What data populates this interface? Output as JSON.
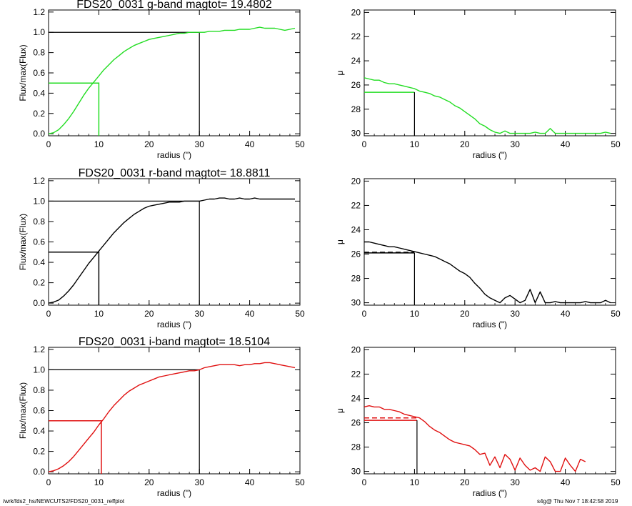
{
  "footer": {
    "path": "/wrk/fds2_hs/NEWCUTS2/FDS20_0031_reffplot",
    "stamp": "s4g@  Thu Nov  7 18:42:58 2019"
  },
  "chart_data": [
    {
      "type": "line",
      "title": "FDS20_0031 g-band  magtot=      19.4802",
      "xlabel": "radius (\")",
      "ylabel": "Flux/max(Flux)",
      "xlim": [
        0,
        50
      ],
      "ylim": [
        -0.02,
        1.22
      ],
      "xticks": [
        "0",
        "10",
        "20",
        "30",
        "40",
        "50"
      ],
      "yticks": [
        "0.0",
        "0.2",
        "0.4",
        "0.6",
        "0.8",
        "1.0",
        "1.2"
      ],
      "color": "#22dd22",
      "series": [
        {
          "x": [
            0,
            1,
            2,
            3,
            4,
            5,
            6,
            7,
            8,
            9,
            10,
            11,
            12,
            13,
            14,
            15,
            16,
            17,
            18,
            19,
            20,
            21,
            22,
            23,
            24,
            25,
            26,
            27,
            28,
            29,
            30,
            31,
            32,
            33,
            34,
            35,
            36,
            37,
            38,
            39,
            40,
            41,
            42,
            43,
            44,
            45,
            46,
            47,
            48,
            49
          ],
          "y": [
            0.0,
            0.01,
            0.04,
            0.09,
            0.15,
            0.22,
            0.3,
            0.38,
            0.45,
            0.51,
            0.57,
            0.63,
            0.68,
            0.73,
            0.77,
            0.81,
            0.84,
            0.87,
            0.89,
            0.91,
            0.93,
            0.94,
            0.95,
            0.96,
            0.97,
            0.98,
            0.99,
            0.99,
            1.0,
            1.0,
            1.0,
            1.0,
            1.01,
            1.01,
            1.01,
            1.02,
            1.02,
            1.02,
            1.03,
            1.03,
            1.03,
            1.04,
            1.05,
            1.04,
            1.04,
            1.04,
            1.03,
            1.02,
            1.03,
            1.04
          ]
        }
      ],
      "reference_lines": {
        "half_light": {
          "x": 10,
          "y": 0.5
        },
        "total": {
          "x": 30,
          "y": 1.0
        }
      }
    },
    {
      "type": "line",
      "title": "",
      "xlabel": "radius (\")",
      "ylabel": "μ",
      "xlim": [
        0,
        50
      ],
      "ylim": [
        30.2,
        19.8
      ],
      "xticks": [
        "0",
        "10",
        "20",
        "30",
        "40",
        "50"
      ],
      "yticks": [
        "20",
        "22",
        "24",
        "26",
        "28",
        "30"
      ],
      "color": "#22dd22",
      "series": [
        {
          "x": [
            0,
            1,
            2,
            3,
            4,
            5,
            6,
            7,
            8,
            9,
            10,
            11,
            12,
            13,
            14,
            15,
            16,
            17,
            18,
            19,
            20,
            21,
            22,
            23,
            24,
            25,
            26,
            27,
            28,
            29,
            30,
            31,
            32,
            33,
            34,
            35,
            36,
            37,
            38,
            39,
            40,
            41,
            42,
            43,
            44,
            45,
            46,
            47,
            48,
            49
          ],
          "y": [
            25.4,
            25.5,
            25.6,
            25.6,
            25.8,
            25.9,
            25.9,
            26.0,
            26.1,
            26.2,
            26.3,
            26.5,
            26.6,
            26.7,
            26.9,
            27.0,
            27.2,
            27.4,
            27.7,
            27.9,
            28.2,
            28.5,
            28.8,
            29.2,
            29.4,
            29.7,
            29.9,
            30.0,
            29.8,
            30.0,
            30.0,
            30.0,
            30.0,
            30.0,
            29.9,
            30.0,
            30.0,
            29.6,
            30.0,
            30.0,
            30.0,
            30.0,
            30.0,
            30.0,
            30.0,
            30.0,
            30.0,
            30.0,
            29.9,
            30.0
          ]
        }
      ],
      "reference_lines": {
        "mu_half": {
          "x": 10,
          "y": 26.6
        }
      }
    },
    {
      "type": "line",
      "title": "FDS20_0031 r-band  magtot=      18.8811",
      "xlabel": "radius (\")",
      "ylabel": "Flux/max(Flux)",
      "xlim": [
        0,
        50
      ],
      "ylim": [
        -0.02,
        1.22
      ],
      "xticks": [
        "0",
        "10",
        "20",
        "30",
        "40",
        "50"
      ],
      "yticks": [
        "0.0",
        "0.2",
        "0.4",
        "0.6",
        "0.8",
        "1.0",
        "1.2"
      ],
      "color": "#000000",
      "series": [
        {
          "x": [
            0,
            1,
            2,
            3,
            4,
            5,
            6,
            7,
            8,
            9,
            10,
            11,
            12,
            13,
            14,
            15,
            16,
            17,
            18,
            19,
            20,
            21,
            22,
            23,
            24,
            25,
            26,
            27,
            28,
            29,
            30,
            31,
            32,
            33,
            34,
            35,
            36,
            37,
            38,
            39,
            40,
            41,
            42,
            43,
            44,
            45,
            46,
            47,
            48,
            49
          ],
          "y": [
            0.0,
            0.01,
            0.03,
            0.07,
            0.12,
            0.18,
            0.25,
            0.32,
            0.39,
            0.45,
            0.51,
            0.57,
            0.63,
            0.69,
            0.74,
            0.79,
            0.83,
            0.87,
            0.9,
            0.93,
            0.95,
            0.96,
            0.97,
            0.98,
            0.99,
            0.99,
            0.99,
            1.0,
            1.0,
            1.0,
            1.0,
            1.01,
            1.02,
            1.02,
            1.03,
            1.03,
            1.02,
            1.02,
            1.03,
            1.02,
            1.02,
            1.03,
            1.02,
            1.02,
            1.02,
            1.02,
            1.02,
            1.02,
            1.02,
            1.02
          ]
        }
      ],
      "reference_lines": {
        "half_light": {
          "x": 10,
          "y": 0.5
        },
        "total": {
          "x": 30,
          "y": 1.0
        }
      }
    },
    {
      "type": "line",
      "title": "",
      "xlabel": "radius (\")",
      "ylabel": "μ",
      "xlim": [
        0,
        50
      ],
      "ylim": [
        30.2,
        19.8
      ],
      "xticks": [
        "0",
        "10",
        "20",
        "30",
        "40",
        "50"
      ],
      "yticks": [
        "20",
        "22",
        "24",
        "26",
        "28",
        "30"
      ],
      "color": "#000000",
      "series": [
        {
          "x": [
            0,
            1,
            2,
            3,
            4,
            5,
            6,
            7,
            8,
            9,
            10,
            11,
            12,
            13,
            14,
            15,
            16,
            17,
            18,
            19,
            20,
            21,
            22,
            23,
            24,
            25,
            26,
            27,
            28,
            29,
            30,
            31,
            32,
            33,
            34,
            35,
            36,
            37,
            38,
            39,
            40,
            41,
            42,
            43,
            44,
            45,
            46,
            47,
            48,
            49
          ],
          "y": [
            25.0,
            25.0,
            25.1,
            25.2,
            25.3,
            25.4,
            25.4,
            25.5,
            25.6,
            25.7,
            25.8,
            25.9,
            26.0,
            26.1,
            26.2,
            26.4,
            26.6,
            26.8,
            27.1,
            27.4,
            27.6,
            27.9,
            28.4,
            28.8,
            29.3,
            29.6,
            29.8,
            30.0,
            29.6,
            29.4,
            29.7,
            30.0,
            29.8,
            28.9,
            30.0,
            29.1,
            30.0,
            30.0,
            29.9,
            30.0,
            30.0,
            30.0,
            30.0,
            30.0,
            29.9,
            30.0,
            30.0,
            30.0,
            29.8,
            30.0
          ]
        }
      ],
      "reference_lines": {
        "mu_half": {
          "x": 10,
          "y": 25.9
        },
        "mu_dashed": 25.85
      }
    },
    {
      "type": "line",
      "title": "FDS20_0031 i-band  magtot=      18.5104",
      "xlabel": "radius (\")",
      "ylabel": "Flux/max(Flux)",
      "xlim": [
        0,
        50
      ],
      "ylim": [
        -0.02,
        1.22
      ],
      "xticks": [
        "0",
        "10",
        "20",
        "30",
        "40",
        "50"
      ],
      "yticks": [
        "0.0",
        "0.2",
        "0.4",
        "0.6",
        "0.8",
        "1.0",
        "1.2"
      ],
      "color": "#e01010",
      "series": [
        {
          "x": [
            0,
            1,
            2,
            3,
            4,
            5,
            6,
            7,
            8,
            9,
            10,
            11,
            12,
            13,
            14,
            15,
            16,
            17,
            18,
            19,
            20,
            21,
            22,
            23,
            24,
            25,
            26,
            27,
            28,
            29,
            30,
            31,
            32,
            33,
            34,
            35,
            36,
            37,
            38,
            39,
            40,
            41,
            42,
            43,
            44,
            45,
            46,
            47,
            48,
            49
          ],
          "y": [
            0.0,
            0.01,
            0.03,
            0.06,
            0.1,
            0.15,
            0.21,
            0.27,
            0.33,
            0.39,
            0.46,
            0.52,
            0.59,
            0.65,
            0.7,
            0.75,
            0.79,
            0.82,
            0.85,
            0.87,
            0.89,
            0.91,
            0.93,
            0.94,
            0.95,
            0.96,
            0.97,
            0.98,
            0.99,
            0.99,
            1.0,
            1.02,
            1.03,
            1.04,
            1.05,
            1.05,
            1.05,
            1.05,
            1.04,
            1.05,
            1.05,
            1.06,
            1.06,
            1.07,
            1.07,
            1.06,
            1.05,
            1.04,
            1.03,
            1.02
          ]
        }
      ],
      "reference_lines": {
        "half_light": {
          "x": 10.5,
          "y": 0.5
        },
        "total": {
          "x": 30,
          "y": 1.0
        }
      }
    },
    {
      "type": "line",
      "title": "",
      "xlabel": "radius (\")",
      "ylabel": "μ",
      "xlim": [
        0,
        50
      ],
      "ylim": [
        30.2,
        19.8
      ],
      "xticks": [
        "0",
        "10",
        "20",
        "30",
        "40",
        "50"
      ],
      "yticks": [
        "20",
        "22",
        "24",
        "26",
        "28",
        "30"
      ],
      "color": "#e01010",
      "series": [
        {
          "x": [
            0,
            1,
            2,
            3,
            4,
            5,
            6,
            7,
            8,
            9,
            10,
            11,
            12,
            13,
            14,
            15,
            16,
            17,
            18,
            19,
            20,
            21,
            22,
            23,
            24,
            25,
            26,
            27,
            28,
            29,
            30,
            31,
            32,
            33,
            34,
            35,
            36,
            37,
            38,
            39,
            40,
            41,
            42,
            43,
            44
          ],
          "y": [
            24.7,
            24.6,
            24.7,
            24.7,
            24.9,
            24.9,
            25.0,
            25.1,
            25.3,
            25.4,
            25.5,
            25.6,
            25.9,
            26.3,
            26.6,
            26.8,
            27.1,
            27.4,
            27.6,
            27.7,
            27.8,
            27.9,
            28.2,
            28.6,
            28.5,
            29.5,
            28.8,
            29.7,
            28.6,
            29.0,
            29.9,
            28.9,
            29.5,
            29.9,
            29.7,
            30.0,
            28.8,
            29.2,
            30.0,
            30.0,
            28.9,
            29.5,
            30.0,
            29.0,
            29.2
          ]
        }
      ],
      "reference_lines": {
        "mu_half": {
          "x": 10.5,
          "y": 25.8
        },
        "mu_dashed": 25.6
      }
    }
  ]
}
